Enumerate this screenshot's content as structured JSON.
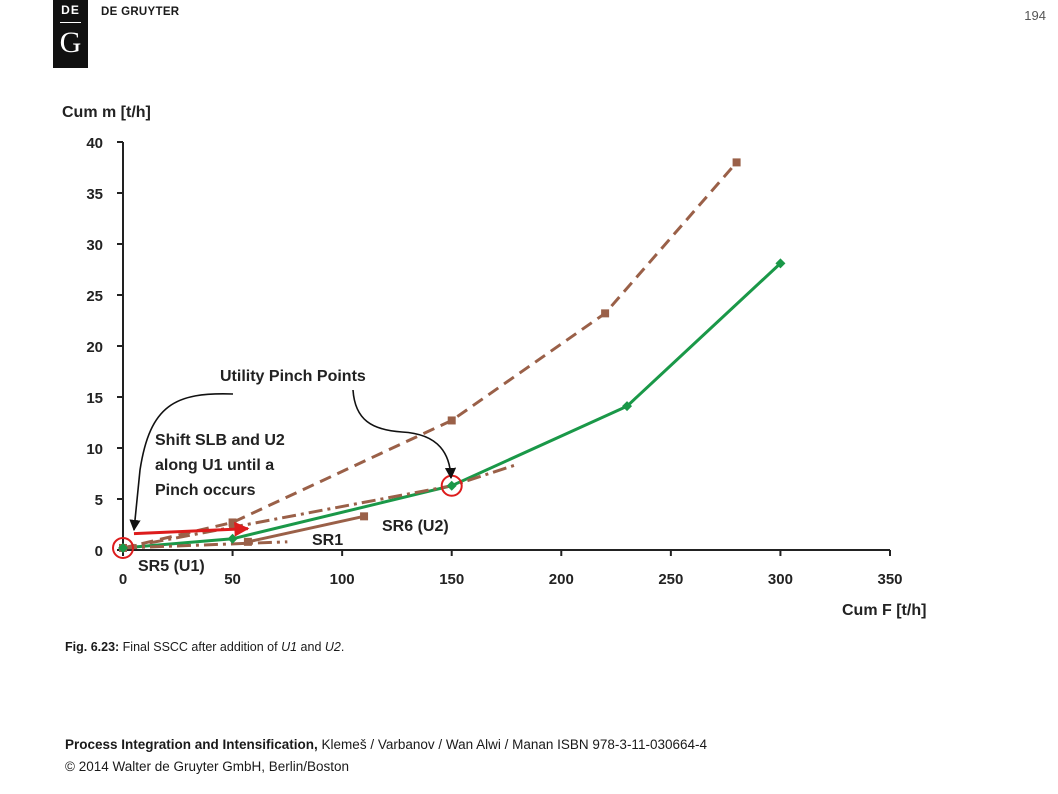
{
  "header": {
    "logo_top": "DE",
    "logo_bottom": "G",
    "publisher": "DE GRUYTER",
    "page_number": "194"
  },
  "chart_data": {
    "type": "line",
    "xlabel": "Cum F  [t/h]",
    "ylabel": "Cum m  [t/h]",
    "xlim": [
      0,
      350
    ],
    "ylim": [
      0,
      40
    ],
    "x_ticks": [
      "0",
      "50",
      "100",
      "150",
      "200",
      "250",
      "300",
      "350"
    ],
    "y_ticks": [
      "0",
      "5",
      "10",
      "15",
      "20",
      "25",
      "30",
      "35",
      "40"
    ],
    "grid": false,
    "series": [
      {
        "name": "",
        "style": "dashed",
        "color": "#9a6048",
        "marker": "square",
        "points": [
          [
            0,
            0.2
          ],
          [
            50,
            2.7
          ],
          [
            150,
            12.7
          ],
          [
            220,
            23.2
          ],
          [
            280,
            38
          ]
        ]
      },
      {
        "name": "",
        "style": "solid",
        "color": "#1a9848",
        "marker": "diamond",
        "points": [
          [
            0,
            0.2
          ],
          [
            50,
            1.1
          ],
          [
            150,
            6.3
          ],
          [
            230,
            14.1
          ],
          [
            300,
            28.1
          ]
        ]
      },
      {
        "name": "SR1",
        "style": "solid",
        "color": "#9a6048",
        "marker": "square",
        "points": [
          [
            57,
            0.8
          ],
          [
            110,
            3.3
          ]
        ]
      },
      {
        "name": "SR6 (U2)",
        "style": "dashdot",
        "color": "#9a6048",
        "marker": "none",
        "points": [
          [
            0,
            0.2
          ],
          [
            150,
            6.3
          ],
          [
            180,
            8.4
          ]
        ]
      },
      {
        "name": "SR5 (U1)",
        "style": "dashdot",
        "color": "#9a6048",
        "marker": "none",
        "points": [
          [
            0,
            0.2
          ],
          [
            75,
            0.8
          ]
        ]
      }
    ],
    "annotations": {
      "pinch_label": "Utility Pinch Points",
      "shift_lines": [
        "Shift SLB and U2",
        "along U1 until a",
        "Pinch occurs"
      ],
      "sr1": "SR1",
      "sr6": "SR6 (U2)",
      "sr5": "SR5 (U1)"
    },
    "pinch_points": [
      [
        0,
        0.2
      ],
      [
        150,
        6.3
      ]
    ],
    "shift_arrow": {
      "from": [
        5,
        1.6
      ],
      "to": [
        57,
        2.1
      ]
    }
  },
  "caption": {
    "label": "Fig. 6.23:",
    "text_before": " Final SSCC after addition of ",
    "italic1": "U1",
    "text_mid": " and ",
    "italic2": "U2",
    "text_end": "."
  },
  "footer": {
    "title": "Process Integration and Intensification,",
    "authors": " Klemeš / Varbanov / Wan Alwi / Manan ISBN 978-3-11-030664-4",
    "copyright": "© 2014 Walter de Gruyter GmbH, Berlin/Boston"
  }
}
